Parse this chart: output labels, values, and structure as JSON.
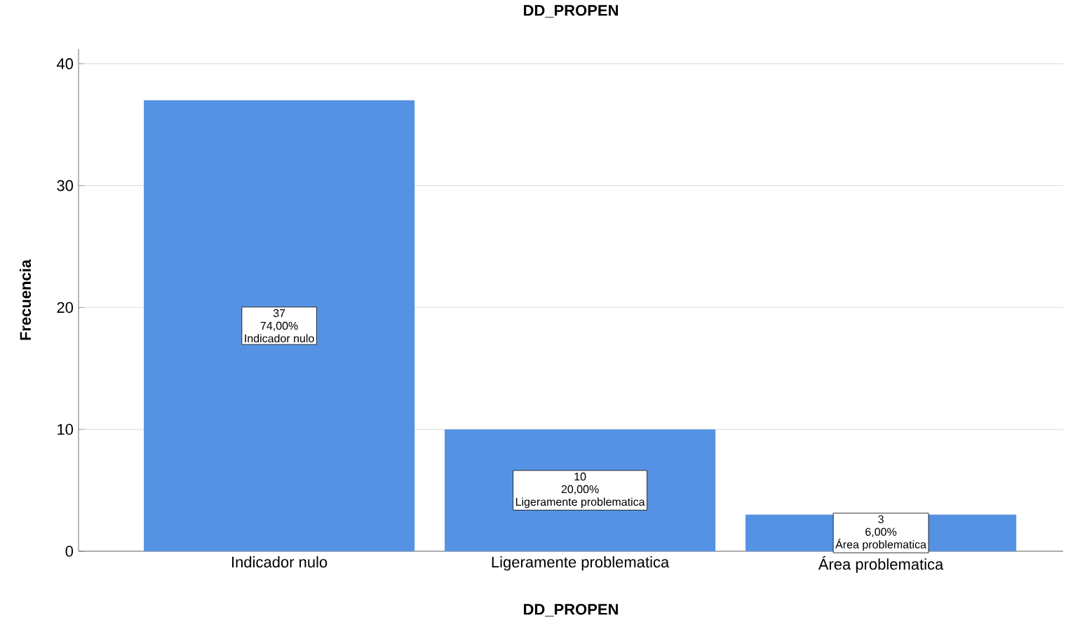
{
  "chart_data": {
    "type": "bar",
    "title": "DD_PROPEN",
    "xlabel": "DD_PROPEN",
    "ylabel": "Frecuencia",
    "categories": [
      "Indicador nulo",
      "Ligeramente problematica",
      "Área problematica"
    ],
    "values": [
      37,
      10,
      3
    ],
    "color": "#5592e3",
    "value_labels": [
      "37",
      "10",
      "3"
    ],
    "annotations": [
      "74,00%",
      "Indicador nulo",
      "20,00%",
      "Ligeramente problematica",
      "6,00%",
      "Área problematica"
    ],
    "ylim": [
      0,
      41.2
    ],
    "yticks": [
      0,
      10,
      20,
      30,
      40
    ],
    "grid": "y"
  }
}
